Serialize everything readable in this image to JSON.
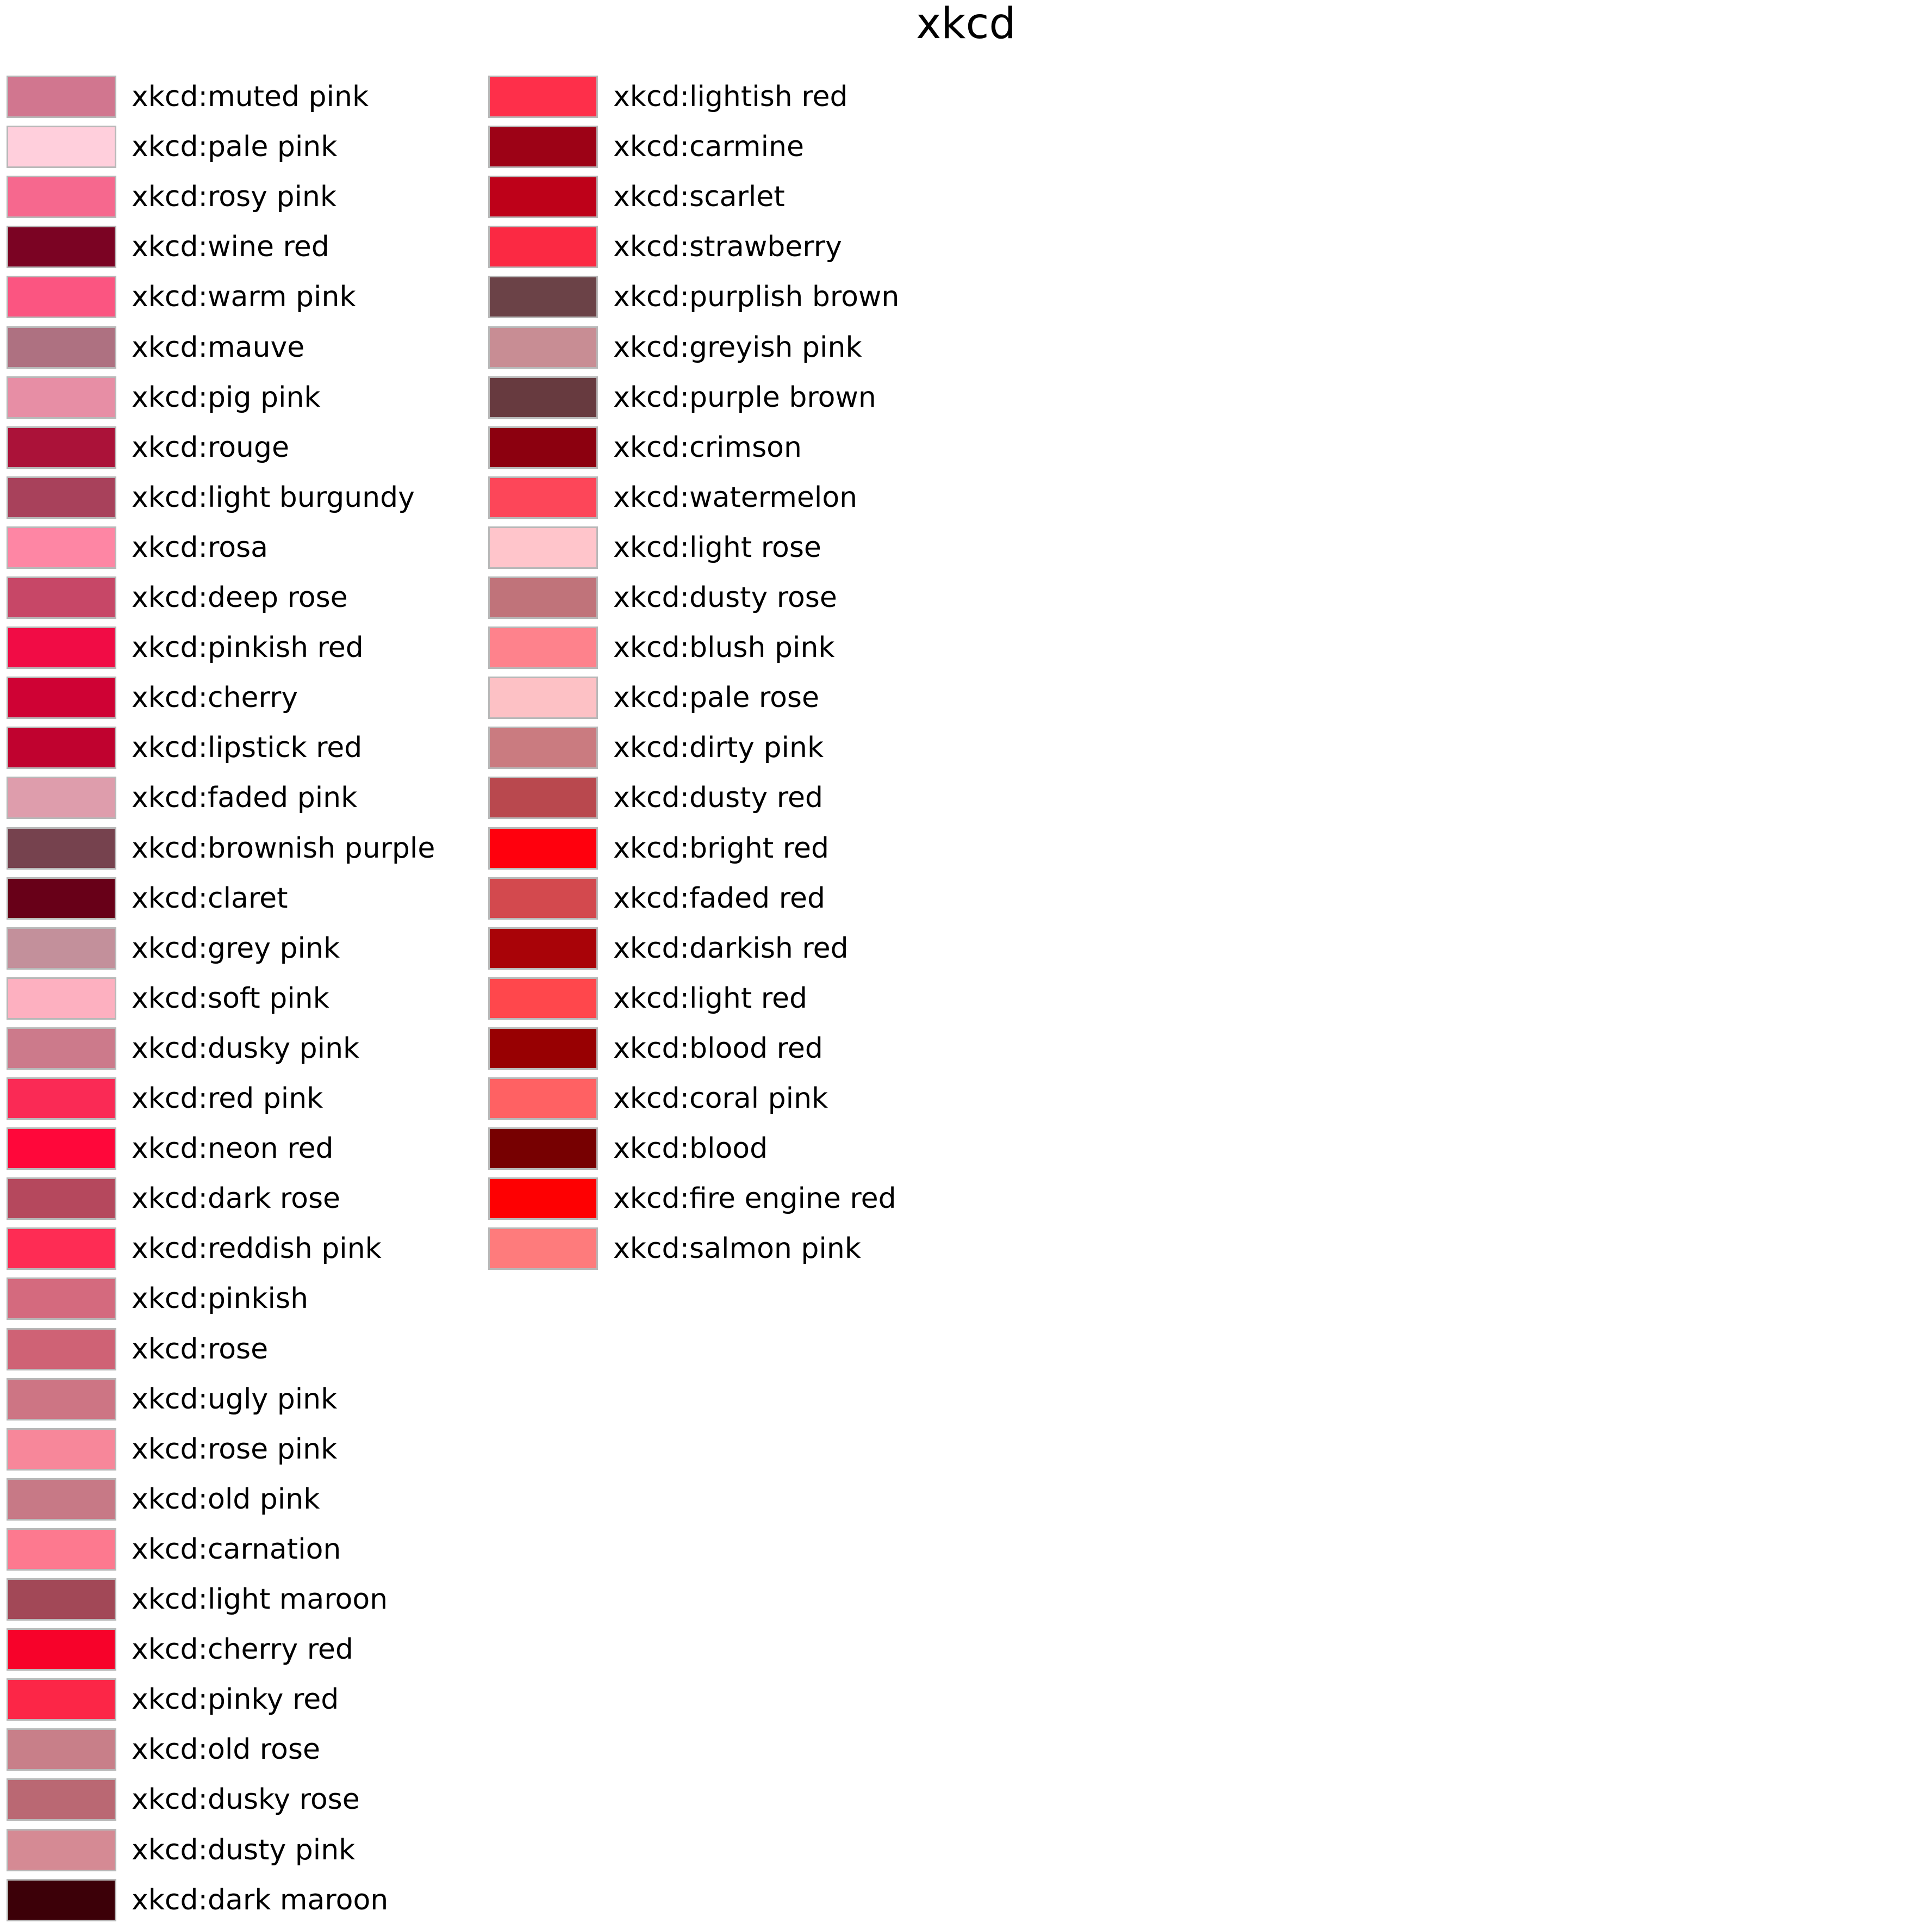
{
  "chart_data": {
    "type": "table",
    "title": "xkcd",
    "columns": [
      [
        {
          "name": "xkcd:muted pink",
          "color": "#d1768f"
        },
        {
          "name": "xkcd:pale pink",
          "color": "#ffcfdc"
        },
        {
          "name": "xkcd:rosy pink",
          "color": "#f6688e"
        },
        {
          "name": "xkcd:wine red",
          "color": "#7b0323"
        },
        {
          "name": "xkcd:warm pink",
          "color": "#fb5581"
        },
        {
          "name": "xkcd:mauve",
          "color": "#ae7181"
        },
        {
          "name": "xkcd:pig pink",
          "color": "#e78ea5"
        },
        {
          "name": "xkcd:rouge",
          "color": "#ab1239"
        },
        {
          "name": "xkcd:light burgundy",
          "color": "#a8415b"
        },
        {
          "name": "xkcd:rosa",
          "color": "#fe86a4"
        },
        {
          "name": "xkcd:deep rose",
          "color": "#c74767"
        },
        {
          "name": "xkcd:pinkish red",
          "color": "#f10c45"
        },
        {
          "name": "xkcd:cherry",
          "color": "#cf0234"
        },
        {
          "name": "xkcd:lipstick red",
          "color": "#c0022f"
        },
        {
          "name": "xkcd:faded pink",
          "color": "#de9dac"
        },
        {
          "name": "xkcd:brownish purple",
          "color": "#76424e"
        },
        {
          "name": "xkcd:claret",
          "color": "#680018"
        },
        {
          "name": "xkcd:grey pink",
          "color": "#c3909b"
        },
        {
          "name": "xkcd:soft pink",
          "color": "#fdb0c0"
        },
        {
          "name": "xkcd:dusky pink",
          "color": "#cc7a8b"
        },
        {
          "name": "xkcd:red pink",
          "color": "#fa2a55"
        },
        {
          "name": "xkcd:neon red",
          "color": "#ff073a"
        },
        {
          "name": "xkcd:dark rose",
          "color": "#b5485d"
        },
        {
          "name": "xkcd:reddish pink",
          "color": "#fe2c54"
        },
        {
          "name": "xkcd:pinkish",
          "color": "#d46a7e"
        },
        {
          "name": "xkcd:rose",
          "color": "#cf6275"
        },
        {
          "name": "xkcd:ugly pink",
          "color": "#cd7584"
        },
        {
          "name": "xkcd:rose pink",
          "color": "#f7879a"
        },
        {
          "name": "xkcd:old pink",
          "color": "#c77986"
        },
        {
          "name": "xkcd:carnation",
          "color": "#fd798f"
        },
        {
          "name": "xkcd:light maroon",
          "color": "#a24857"
        },
        {
          "name": "xkcd:cherry red",
          "color": "#f7022a"
        },
        {
          "name": "xkcd:pinky red",
          "color": "#fc2647"
        },
        {
          "name": "xkcd:old rose",
          "color": "#c87f89"
        },
        {
          "name": "xkcd:dusky rose",
          "color": "#ba6873"
        },
        {
          "name": "xkcd:dusty pink",
          "color": "#d58a94"
        },
        {
          "name": "xkcd:dark maroon",
          "color": "#3c0008"
        }
      ],
      [
        {
          "name": "xkcd:lightish red",
          "color": "#fe2f4a"
        },
        {
          "name": "xkcd:carmine",
          "color": "#9d0216"
        },
        {
          "name": "xkcd:scarlet",
          "color": "#be0119"
        },
        {
          "name": "xkcd:strawberry",
          "color": "#fb2943"
        },
        {
          "name": "xkcd:purplish brown",
          "color": "#6b4247"
        },
        {
          "name": "xkcd:greyish pink",
          "color": "#c88d94"
        },
        {
          "name": "xkcd:purple brown",
          "color": "#673a3f"
        },
        {
          "name": "xkcd:crimson",
          "color": "#8c000f"
        },
        {
          "name": "xkcd:watermelon",
          "color": "#fd4659"
        },
        {
          "name": "xkcd:light rose",
          "color": "#ffc5cb"
        },
        {
          "name": "xkcd:dusty rose",
          "color": "#c0737a"
        },
        {
          "name": "xkcd:blush pink",
          "color": "#fe828c"
        },
        {
          "name": "xkcd:pale rose",
          "color": "#fdc1c5"
        },
        {
          "name": "xkcd:dirty pink",
          "color": "#ca7b80"
        },
        {
          "name": "xkcd:dusty red",
          "color": "#b9484e"
        },
        {
          "name": "xkcd:bright red",
          "color": "#ff000d"
        },
        {
          "name": "xkcd:faded red",
          "color": "#d3494e"
        },
        {
          "name": "xkcd:darkish red",
          "color": "#a90308"
        },
        {
          "name": "xkcd:light red",
          "color": "#ff474c"
        },
        {
          "name": "xkcd:blood red",
          "color": "#980002"
        },
        {
          "name": "xkcd:coral pink",
          "color": "#ff6163"
        },
        {
          "name": "xkcd:blood",
          "color": "#770001"
        },
        {
          "name": "xkcd:fire engine red",
          "color": "#fe0002"
        },
        {
          "name": "xkcd:salmon pink",
          "color": "#fe7b7c"
        }
      ]
    ]
  }
}
